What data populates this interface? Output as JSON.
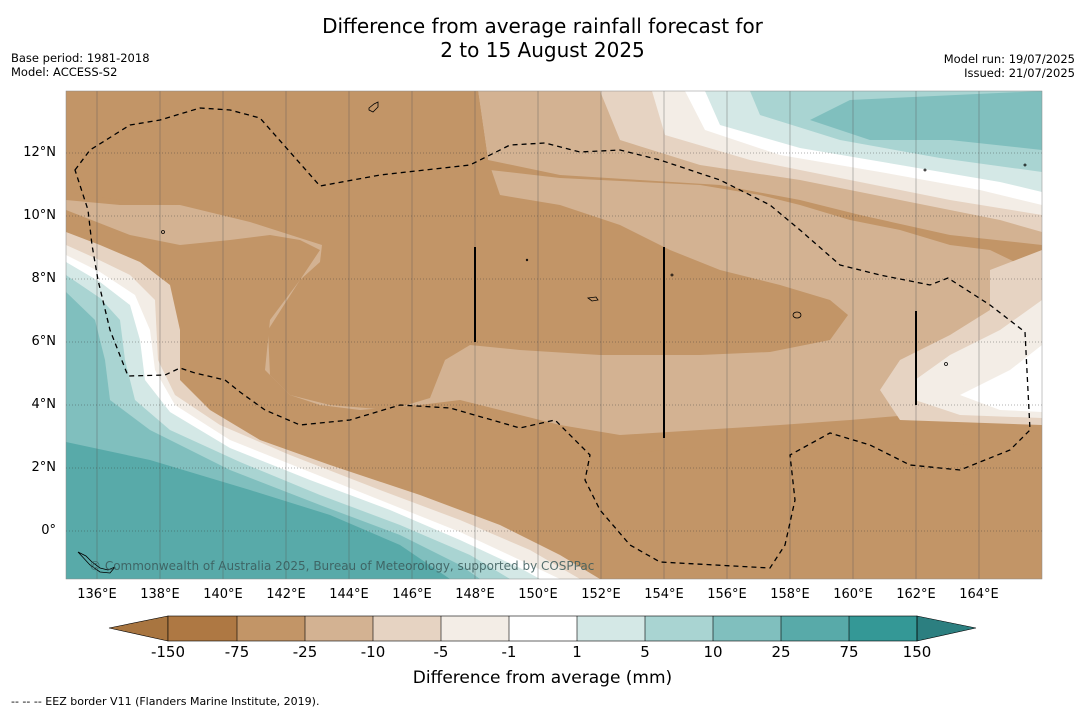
{
  "title": {
    "line1": "Difference from average rainfall forecast for",
    "line2": "2 to 15 August 2025"
  },
  "meta_left": {
    "base_period": "Base period: 1981-2018",
    "model": "Model: ACCESS-S2"
  },
  "meta_right": {
    "model_run": "Model run: 19/07/2025",
    "issued": "Issued: 21/07/2025"
  },
  "map": {
    "lat_labels": [
      "12°N",
      "10°N",
      "8°N",
      "6°N",
      "4°N",
      "2°N",
      "0°"
    ],
    "lon_labels": [
      "136°E",
      "138°E",
      "140°E",
      "142°E",
      "144°E",
      "146°E",
      "148°E",
      "150°E",
      "152°E",
      "154°E",
      "156°E",
      "158°E",
      "160°E",
      "162°E",
      "164°E"
    ],
    "copyright": "© Commonwealth of Australia 2025, Bureau of Meteorology, supported by COSPPac"
  },
  "colorbar": {
    "ticks": [
      "-150",
      "-75",
      "-25",
      "-10",
      "-5",
      "-1",
      "1",
      "5",
      "10",
      "25",
      "75",
      "150"
    ],
    "colors": [
      "#a87540",
      "#ae7843",
      "#c29567",
      "#d3b292",
      "#e6d3c2",
      "#f3ede6",
      "#ffffff",
      "#d4e8e6",
      "#a9d4d2",
      "#80bfbe",
      "#58aaa9",
      "#349896",
      "#2c7f80"
    ],
    "title": "Difference from average (mm)"
  },
  "footnote": "--  --  -- EEZ border V11 (Flanders Marine Institute, 2019)."
}
